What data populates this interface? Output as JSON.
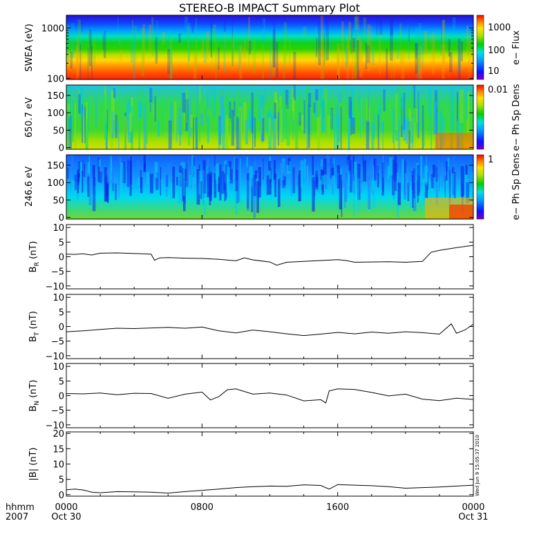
{
  "title": "STEREO-B IMPACT Summary Plot",
  "timestamp": "Wed Jun 9 15:05:37 2010",
  "x_axis": {
    "row1_label": "hhmm",
    "row2_label": "2007",
    "ticks": [
      {
        "hour": 0,
        "top": "0000",
        "bottom": "Oct 30"
      },
      {
        "hour": 8,
        "top": "0800",
        "bottom": ""
      },
      {
        "hour": 16,
        "top": "1600",
        "bottom": ""
      },
      {
        "hour": 24,
        "top": "0000",
        "bottom": "Oct 31"
      }
    ],
    "range_hours": [
      0,
      24
    ]
  },
  "chart_data": [
    {
      "type": "heatmap",
      "ylabel": "SWEA (eV)",
      "yscale": "log",
      "ylim": [
        95,
        1800
      ],
      "yticks": [
        {
          "v": 100,
          "label": "100"
        },
        {
          "v": 1000,
          "label": "1000"
        }
      ],
      "colorbar": {
        "label": "e− Flux",
        "scale": "log",
        "ticks": [
          "1000",
          "100",
          "10"
        ]
      }
    },
    {
      "type": "heatmap",
      "ylabel": "650.7 eV",
      "ylim": [
        -5,
        180
      ],
      "yticks": [
        "0",
        "50",
        "100",
        "150"
      ],
      "colorbar": {
        "label": "e− Ph Sp Dens",
        "ticks": [
          "0.01"
        ]
      }
    },
    {
      "type": "heatmap",
      "ylabel": "246.6 eV",
      "ylim": [
        -5,
        180
      ],
      "yticks": [
        "0",
        "50",
        "100",
        "150"
      ],
      "colorbar": {
        "label": "e− Ph Sp Dens",
        "ticks": [
          "1"
        ]
      }
    },
    {
      "type": "line",
      "ylabel_main": "B",
      "ylabel_sub": "R",
      "ylabel_unit": " (nT)",
      "ylim": [
        -11,
        11
      ],
      "yticks": [
        "10",
        "5",
        "0",
        "−5",
        "−10"
      ],
      "x": [
        0,
        0.5,
        1,
        1.5,
        2,
        3,
        4,
        5,
        5.2,
        5.5,
        6,
        7,
        8,
        9,
        10,
        10.5,
        11,
        12,
        12.4,
        13,
        14,
        15,
        16,
        16.5,
        17,
        18,
        19,
        20,
        21,
        21.5,
        22,
        23,
        24
      ],
      "y": [
        0.9,
        0.8,
        1.0,
        0.6,
        1.2,
        1.3,
        1.1,
        0.9,
        -1.2,
        -0.4,
        -0.3,
        -0.5,
        -0.6,
        -0.9,
        -1.4,
        -0.4,
        -1.1,
        -1.8,
        -2.9,
        -1.9,
        -1.6,
        -1.3,
        -1.0,
        -1.3,
        -1.9,
        -1.8,
        -1.7,
        -1.9,
        -1.6,
        1.5,
        2.2,
        3.1,
        3.9
      ]
    },
    {
      "type": "line",
      "ylabel_main": "B",
      "ylabel_sub": "T",
      "ylabel_unit": " (nT)",
      "ylim": [
        -11,
        11
      ],
      "yticks": [
        "10",
        "5",
        "0",
        "−5",
        "−10"
      ],
      "x": [
        0,
        1,
        2,
        3,
        4,
        5,
        6,
        7,
        8,
        9,
        10,
        11,
        12,
        13,
        14,
        15,
        16,
        17,
        18,
        19,
        20,
        21,
        22,
        22.7,
        23,
        23.5,
        24
      ],
      "y": [
        -1.8,
        -1.5,
        -1.0,
        -0.6,
        -0.7,
        -0.5,
        -0.3,
        -0.6,
        -0.2,
        -1.5,
        -2.2,
        -1.2,
        -1.8,
        -2.5,
        -3.1,
        -2.6,
        -2.0,
        -2.5,
        -1.9,
        -2.3,
        -1.8,
        -2.1,
        -2.6,
        0.9,
        -2.3,
        -1.2,
        0.8
      ]
    },
    {
      "type": "line",
      "ylabel_main": "B",
      "ylabel_sub": "N",
      "ylabel_unit": " (nT)",
      "ylim": [
        -11,
        11
      ],
      "yticks": [
        "10",
        "5",
        "0",
        "−5",
        "−10"
      ],
      "x": [
        0,
        1,
        2,
        3,
        4,
        5,
        6,
        7,
        8,
        8.5,
        9,
        9.5,
        10,
        11,
        12,
        13,
        14,
        15,
        15.3,
        15.5,
        16,
        17,
        18,
        19,
        20,
        21,
        22,
        23,
        24
      ],
      "y": [
        0.7,
        0.6,
        0.9,
        0.3,
        0.8,
        0.7,
        -0.9,
        0.5,
        1.2,
        -1.5,
        -0.3,
        2.0,
        2.3,
        0.5,
        0.9,
        0.2,
        -1.8,
        -1.4,
        -2.5,
        1.6,
        2.3,
        2.1,
        1.1,
        -0.1,
        0.5,
        -1.2,
        -1.7,
        -0.9,
        -1.3
      ]
    },
    {
      "type": "line",
      "ylabel_main": "|B|",
      "ylabel_sub": "",
      "ylabel_unit": " (nT)",
      "ylim": [
        -0.5,
        20.5
      ],
      "yticks": [
        "20",
        "15",
        "10",
        "5",
        "0"
      ],
      "x": [
        0,
        0.5,
        1,
        1.5,
        2,
        3,
        4,
        5,
        6,
        7,
        8,
        9,
        10,
        11,
        12,
        13,
        14,
        15,
        15.5,
        16,
        17,
        18,
        19,
        20,
        21,
        22,
        23,
        24
      ],
      "y": [
        1.6,
        1.8,
        1.5,
        0.8,
        0.6,
        1.0,
        0.9,
        0.8,
        0.5,
        1.0,
        1.4,
        1.8,
        2.3,
        2.6,
        2.8,
        2.7,
        3.2,
        3.0,
        1.8,
        3.3,
        3.1,
        2.9,
        2.6,
        2.1,
        2.3,
        2.5,
        2.8,
        3.1
      ]
    }
  ]
}
